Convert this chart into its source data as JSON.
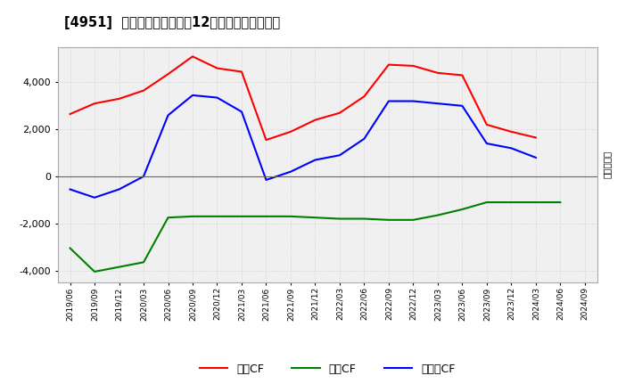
{
  "title": "[4951]  キャッシュフローの12か月移動合計の推移",
  "ylabel": "（百万円）",
  "x_labels": [
    "2019/06",
    "2019/09",
    "2019/12",
    "2020/03",
    "2020/06",
    "2020/09",
    "2020/12",
    "2021/03",
    "2021/06",
    "2021/09",
    "2021/12",
    "2022/03",
    "2022/06",
    "2022/09",
    "2022/12",
    "2023/03",
    "2023/06",
    "2023/09",
    "2023/12",
    "2024/03",
    "2024/06",
    "2024/09"
  ],
  "operating_cf": [
    2650,
    3100,
    3300,
    3650,
    4350,
    5100,
    4600,
    4450,
    1550,
    1900,
    2400,
    2700,
    3400,
    4750,
    4700,
    4400,
    4300,
    2200,
    1900,
    1650,
    null,
    null
  ],
  "investing_cf": [
    -3050,
    -4050,
    -3850,
    -3650,
    -1750,
    -1700,
    -1700,
    -1700,
    -1700,
    -1700,
    -1750,
    -1800,
    -1800,
    -1850,
    -1850,
    -1650,
    -1400,
    -1100,
    -1100,
    -1100,
    -1100,
    null
  ],
  "free_cf": [
    -550,
    -900,
    -550,
    0,
    2600,
    3450,
    3350,
    2750,
    -150,
    200,
    700,
    900,
    1600,
    3200,
    3200,
    3100,
    3000,
    1400,
    1200,
    800,
    null,
    null
  ],
  "ylim": [
    -4500,
    5500
  ],
  "yticks": [
    -4000,
    -2000,
    0,
    2000,
    4000
  ],
  "operating_color": "#ff0000",
  "investing_color": "#008000",
  "free_color": "#0000ff",
  "bg_color": "#ffffff",
  "plot_bg_color": "#f0f0f0",
  "grid_color": "#cccccc",
  "legend_labels": [
    "営業CF",
    "投資CF",
    "フリーCF"
  ]
}
